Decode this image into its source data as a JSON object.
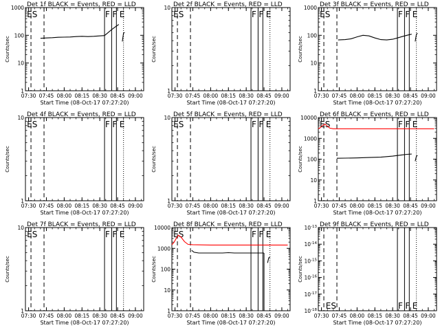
{
  "common": {
    "xlabel": "Start Time (08-Oct-17 07:27:20)",
    "ylabel": "Counts/sec",
    "xlim": [
      "07:27:20",
      "09:07"
    ],
    "xticks": [
      "07:30",
      "07:45",
      "08:00",
      "08:15",
      "08:30",
      "08:45",
      "09:00"
    ],
    "marker_lines": {
      "dashed": [
        "07:32",
        "07:43"
      ],
      "solid": [
        "08:34",
        "08:40",
        "08:44"
      ],
      "dotted": [
        "08:50"
      ]
    },
    "markers": [
      {
        "label": "ES",
        "at": "07:28"
      },
      {
        "label": "F",
        "at": "08:34"
      },
      {
        "label": "F",
        "at": "08:40"
      },
      {
        "label": "E",
        "at": "08:46"
      }
    ],
    "colors": {
      "events": "#000000",
      "lld": "#ff0000"
    }
  },
  "chart_data": [
    {
      "type": "line",
      "title": "Det 1f BLACK = Events, RED = LLD",
      "yscale": "log",
      "ylim": [
        1,
        1000
      ],
      "yticks": [
        "1",
        "10",
        "100",
        "1000"
      ],
      "series": [
        {
          "name": "Events",
          "color": "#000000",
          "segments": [
            {
              "x": [
                "07:40",
                "07:45",
                "07:50",
                "07:55",
                "08:00",
                "08:05",
                "08:10",
                "08:15",
                "08:20",
                "08:25",
                "08:30",
                "08:34",
                "08:37",
                "08:40",
                "08:43",
                "08:46"
              ],
              "y": [
                78,
                80,
                82,
                85,
                86,
                87,
                90,
                92,
                90,
                92,
                95,
                98,
                125,
                160,
                200,
                245
              ]
            },
            {
              "x": [
                "08:49",
                "08:50",
                "08:51"
              ],
              "y": [
                60,
                120,
                125
              ]
            }
          ]
        }
      ],
      "markers": [
        {
          "label": "ES",
          "at": "07:28"
        },
        {
          "label": "F",
          "at": "08:34"
        },
        {
          "label": "F",
          "at": "08:40"
        },
        {
          "label": "E",
          "at": "08:46"
        }
      ]
    },
    {
      "type": "line",
      "title": "Det 2f BLACK = Events, RED = LLD",
      "yscale": "log",
      "ylim": [
        1,
        10
      ],
      "yticks": [
        "1",
        "10"
      ],
      "series": [],
      "markers": [
        {
          "label": "ES",
          "at": "07:28"
        },
        {
          "label": "F",
          "at": "08:34"
        },
        {
          "label": "F",
          "at": "08:40"
        },
        {
          "label": "E",
          "at": "08:46"
        }
      ]
    },
    {
      "type": "line",
      "title": "Det 3f BLACK = Events, RED = LLD",
      "yscale": "log",
      "ylim": [
        1,
        1000
      ],
      "yticks": [
        "1",
        "10",
        "100",
        "1000"
      ],
      "series": [
        {
          "name": "Events",
          "color": "#000000",
          "segments": [
            {
              "x": [
                "07:44",
                "07:50",
                "07:55",
                "08:00",
                "08:05",
                "08:10",
                "08:15",
                "08:20",
                "08:25",
                "08:30",
                "08:34",
                "08:38",
                "08:42",
                "08:46"
              ],
              "y": [
                68,
                70,
                75,
                88,
                100,
                95,
                80,
                70,
                68,
                72,
                80,
                90,
                100,
                110
              ]
            },
            {
              "x": [
                "08:49",
                "08:50",
                "08:51"
              ],
              "y": [
                60,
                110,
                118
              ]
            }
          ]
        }
      ],
      "markers": [
        {
          "label": "ES",
          "at": "07:28"
        },
        {
          "label": "F",
          "at": "08:34"
        },
        {
          "label": "F",
          "at": "08:40"
        },
        {
          "label": "E",
          "at": "08:46"
        }
      ]
    },
    {
      "type": "line",
      "title": "Det 4f BLACK = Events, RED = LLD",
      "yscale": "log",
      "ylim": [
        1,
        10
      ],
      "yticks": [
        "1",
        "10"
      ],
      "series": [],
      "markers": [
        {
          "label": "ES",
          "at": "07:28"
        },
        {
          "label": "F",
          "at": "08:34"
        },
        {
          "label": "F",
          "at": "08:40"
        },
        {
          "label": "E",
          "at": "08:46"
        }
      ]
    },
    {
      "type": "line",
      "title": "Det 5f BLACK = Events, RED = LLD",
      "yscale": "log",
      "ylim": [
        1,
        10
      ],
      "yticks": [
        "1",
        "10"
      ],
      "series": [],
      "markers": [
        {
          "label": "ES",
          "at": "07:28"
        },
        {
          "label": "F",
          "at": "08:34"
        },
        {
          "label": "F",
          "at": "08:40"
        },
        {
          "label": "E",
          "at": "08:46"
        }
      ]
    },
    {
      "type": "line",
      "title": "Det 6f BLACK = Events, RED = LLD",
      "yscale": "log",
      "ylim": [
        1,
        10000
      ],
      "yticks": [
        "1",
        "10",
        "100",
        "1000",
        "10000"
      ],
      "series": [
        {
          "name": "LLD",
          "color": "#ff0000",
          "segments": [
            {
              "x": [
                "07:27:20",
                "07:29",
                "07:31",
                "07:33",
                "07:35",
                "07:37",
                "07:40",
                "07:45",
                "08:00",
                "08:30",
                "09:00",
                "09:05"
              ],
              "y": [
                2900,
                3300,
                4200,
                4800,
                3900,
                3100,
                2900,
                2900,
                2900,
                2900,
                2900,
                2900
              ]
            }
          ]
        },
        {
          "name": "Events",
          "color": "#000000",
          "segments": [
            {
              "x": [
                "07:43",
                "07:50",
                "08:00",
                "08:10",
                "08:20",
                "08:30",
                "08:34",
                "08:38",
                "08:42",
                "08:46"
              ],
              "y": [
                110,
                112,
                115,
                120,
                125,
                140,
                150,
                160,
                170,
                175
              ]
            },
            {
              "x": [
                "08:49",
                "08:50",
                "08:51"
              ],
              "y": [
                80,
                140,
                150
              ]
            }
          ]
        }
      ],
      "markers": [
        {
          "label": "ES",
          "at": "07:28"
        },
        {
          "label": "F",
          "at": "08:34"
        },
        {
          "label": "F",
          "at": "08:40"
        },
        {
          "label": "E",
          "at": "08:46"
        }
      ]
    },
    {
      "type": "line",
      "title": "Det 7f BLACK = Events, RED = LLD",
      "yscale": "log",
      "ylim": [
        1,
        10
      ],
      "yticks": [
        "1",
        "10"
      ],
      "series": [],
      "markers": [
        {
          "label": "ES",
          "at": "07:28"
        },
        {
          "label": "F",
          "at": "08:34"
        },
        {
          "label": "F",
          "at": "08:40"
        },
        {
          "label": "E",
          "at": "08:46"
        }
      ]
    },
    {
      "type": "line",
      "title": "Det 8f BLACK = Events, RED = LLD",
      "yscale": "log",
      "ylim": [
        1,
        10000
      ],
      "yticks": [
        "1",
        "10",
        "100",
        "1000",
        "10000"
      ],
      "series": [
        {
          "name": "LLD",
          "color": "#ff0000",
          "segments": [
            {
              "x": [
                "07:27:20",
                "07:29",
                "07:31",
                "07:33",
                "07:35",
                "07:38",
                "07:41",
                "07:45",
                "08:00",
                "08:30",
                "09:00",
                "09:05"
              ],
              "y": [
                1500,
                1900,
                3000,
                4300,
                3500,
                2100,
                1550,
                1500,
                1450,
                1450,
                1450,
                1450
              ]
            }
          ]
        },
        {
          "name": "Events",
          "color": "#000000",
          "segments": [
            {
              "x": [
                "07:44",
                "07:46",
                "07:50",
                "08:00",
                "08:10",
                "08:15",
                "08:20",
                "08:30",
                "08:40",
                "08:45"
              ],
              "y": [
                800,
                650,
                600,
                600,
                600,
                620,
                600,
                600,
                600,
                600
              ]
            },
            {
              "x": [
                "08:45",
                "08:45"
              ],
              "y": [
                600,
                1
              ]
            },
            {
              "x": [
                "08:48",
                "08:49",
                "08:50"
              ],
              "y": [
                200,
                350,
                380
              ]
            }
          ]
        }
      ],
      "markers": [
        {
          "label": "ES",
          "at": "07:28"
        },
        {
          "label": "F",
          "at": "08:34"
        },
        {
          "label": "F",
          "at": "08:40"
        },
        {
          "label": "E",
          "at": "08:46"
        }
      ]
    },
    {
      "type": "line",
      "title": "Det 9f BLACK = Events, RED = LLD",
      "yscale": "log",
      "ylim": [
        1e-18,
        1e-13
      ],
      "yticks": [
        "10^-18",
        "10^-17",
        "10^-16",
        "10^-15",
        "10^-14",
        "10^-13"
      ],
      "series": [],
      "markers": [
        {
          "label": "ES",
          "at": "07:33"
        },
        {
          "label": "F",
          "at": "08:34"
        },
        {
          "label": "F",
          "at": "08:40"
        },
        {
          "label": "E",
          "at": "08:46"
        }
      ],
      "marker_row": "bottom"
    }
  ]
}
